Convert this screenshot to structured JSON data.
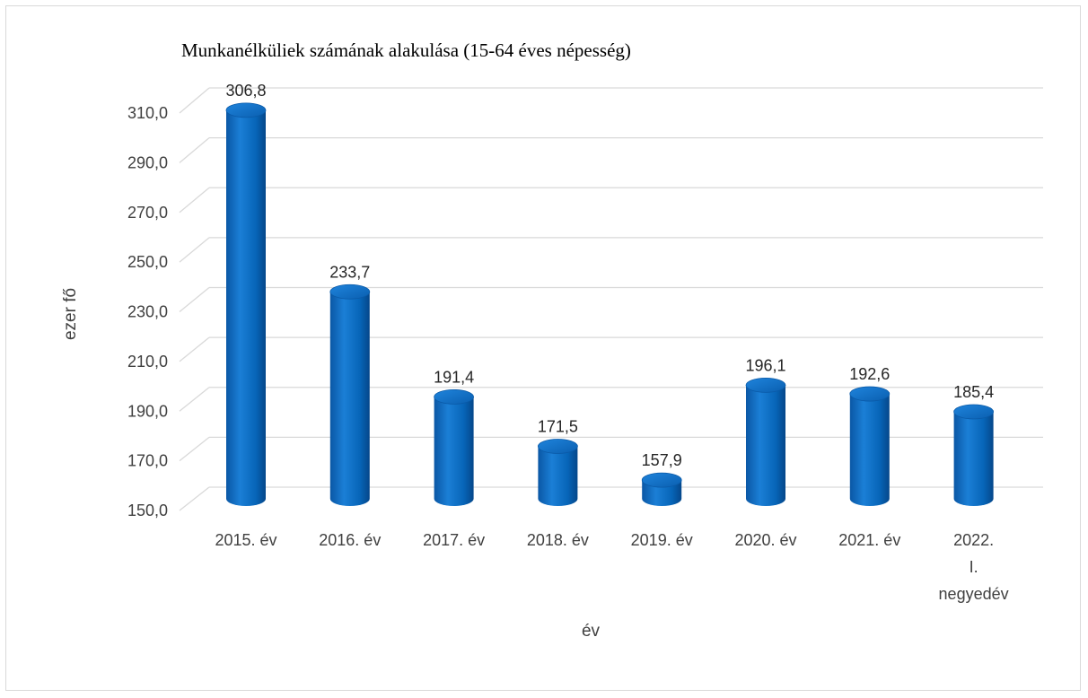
{
  "chart_data": {
    "type": "bar",
    "title": "Munkanélküliek számának alakulása (15-64 éves népesség)",
    "xlabel": "év",
    "ylabel": "ezer fő",
    "categories": [
      [
        "2015. év"
      ],
      [
        "2016. év"
      ],
      [
        "2017. év"
      ],
      [
        "2018. év"
      ],
      [
        "2019. év"
      ],
      [
        "2020. év"
      ],
      [
        "2021. év"
      ],
      [
        "2022.",
        "I.",
        "negyedév"
      ]
    ],
    "values": [
      306.8,
      233.7,
      191.4,
      171.5,
      157.9,
      196.1,
      192.6,
      185.4
    ],
    "data_labels": [
      "306,8",
      "233,7",
      "191,4",
      "171,5",
      "157,9",
      "196,1",
      "192,6",
      "185,4"
    ],
    "y_ticks": [
      "150,0",
      "170,0",
      "190,0",
      "210,0",
      "230,0",
      "250,0",
      "270,0",
      "290,0",
      "310,0"
    ],
    "ylim": [
      150,
      310
    ],
    "grid": true,
    "legend": "none",
    "bar_color": "#0070c0"
  }
}
